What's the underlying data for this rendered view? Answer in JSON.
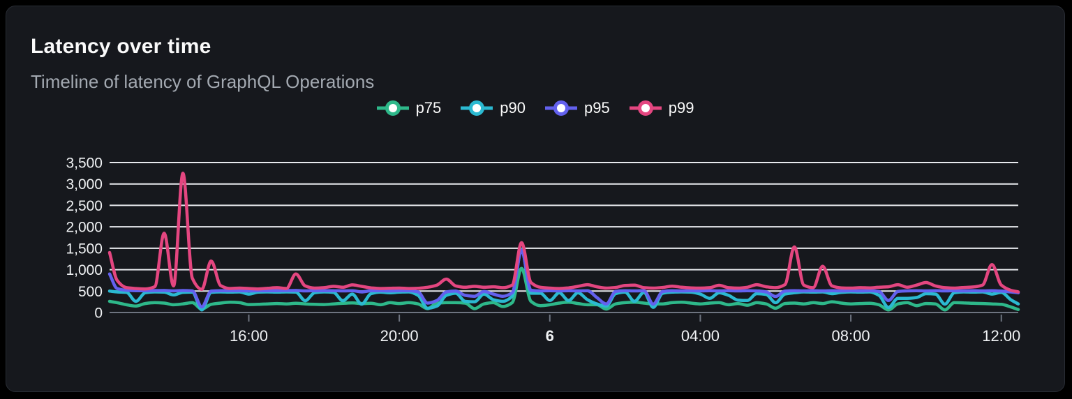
{
  "panel": {
    "title": "Latency over time",
    "subtitle": "Timeline of latency of GraphQL Operations"
  },
  "colors": {
    "background": "#000000",
    "card_background": "#16181d",
    "card_border": "#282c34",
    "title_text": "#fafafa",
    "subtitle_text": "#a3a9b1",
    "axis_label_text": "#f0f2f4",
    "gridline": "#e8eaee",
    "axis_line": "#6e7480",
    "p75": "#2eb88a",
    "p90": "#2bb9d1",
    "p95": "#6361ee",
    "p99": "#e44680"
  },
  "chart_data": {
    "type": "line",
    "title": "Latency over time",
    "subtitle": "Timeline of latency of GraphQL Operations",
    "xlabel": "",
    "ylabel": "",
    "grid": "horizontal",
    "legend_position": "top-center",
    "ylim": [
      0,
      3500
    ],
    "xlim": [
      12.3,
      36.45
    ],
    "x_unit": "hours-of-day (continuous, 24 = midnight of day 6)",
    "y_ticks": [
      {
        "value": 0,
        "label": "0"
      },
      {
        "value": 500,
        "label": "500"
      },
      {
        "value": 1000,
        "label": "1,000"
      },
      {
        "value": 1500,
        "label": "1,500"
      },
      {
        "value": 2000,
        "label": "2,000"
      },
      {
        "value": 2500,
        "label": "2,500"
      },
      {
        "value": 3000,
        "label": "3,000"
      },
      {
        "value": 3500,
        "label": "3,500"
      }
    ],
    "x_ticks": [
      {
        "value": 16,
        "label": "16:00",
        "emphasis": false
      },
      {
        "value": 20,
        "label": "20:00",
        "emphasis": false
      },
      {
        "value": 24,
        "label": "6",
        "emphasis": true
      },
      {
        "value": 28,
        "label": "04:00",
        "emphasis": false
      },
      {
        "value": 32,
        "label": "08:00",
        "emphasis": false
      },
      {
        "value": 36,
        "label": "12:00",
        "emphasis": false
      }
    ],
    "x": [
      12.3,
      12.5,
      12.75,
      13,
      13.25,
      13.5,
      13.75,
      14,
      14.25,
      14.5,
      14.75,
      15,
      15.25,
      15.5,
      15.75,
      16,
      16.25,
      16.5,
      16.75,
      17,
      17.25,
      17.5,
      17.75,
      18,
      18.25,
      18.5,
      18.75,
      19,
      19.25,
      19.5,
      19.75,
      20,
      20.25,
      20.5,
      20.75,
      21,
      21.25,
      21.5,
      21.75,
      22,
      22.25,
      22.5,
      22.75,
      23,
      23.25,
      23.5,
      23.75,
      24,
      24.25,
      24.5,
      24.75,
      25,
      25.25,
      25.5,
      25.75,
      26,
      26.25,
      26.5,
      26.75,
      27,
      27.25,
      27.5,
      27.75,
      28,
      28.25,
      28.5,
      28.75,
      29,
      29.25,
      29.5,
      29.75,
      30,
      30.25,
      30.5,
      30.75,
      31,
      31.25,
      31.5,
      31.75,
      32,
      32.25,
      32.5,
      32.75,
      33,
      33.25,
      33.5,
      33.75,
      34,
      34.25,
      34.5,
      34.75,
      35,
      35.25,
      35.5,
      35.75,
      36,
      36.25,
      36.45
    ],
    "series": [
      {
        "name": "p75",
        "color": "#2eb88a",
        "values": [
          260,
          230,
          180,
          150,
          210,
          230,
          220,
          180,
          200,
          230,
          80,
          190,
          220,
          240,
          230,
          185,
          190,
          200,
          210,
          200,
          215,
          200,
          190,
          185,
          200,
          215,
          225,
          210,
          215,
          180,
          230,
          210,
          230,
          200,
          90,
          220,
          230,
          230,
          220,
          90,
          200,
          230,
          140,
          230,
          1030,
          260,
          160,
          180,
          220,
          240,
          210,
          180,
          180,
          80,
          200,
          230,
          240,
          220,
          200,
          200,
          230,
          240,
          220,
          200,
          220,
          230,
          180,
          210,
          170,
          230,
          200,
          100,
          210,
          220,
          200,
          230,
          210,
          250,
          220,
          200,
          210,
          215,
          180,
          60,
          200,
          230,
          160,
          210,
          200,
          60,
          230,
          225,
          215,
          210,
          200,
          190,
          130,
          70
        ]
      },
      {
        "name": "p90",
        "color": "#2bb9d1",
        "values": [
          500,
          480,
          470,
          260,
          460,
          480,
          475,
          410,
          470,
          475,
          60,
          470,
          480,
          475,
          480,
          430,
          475,
          480,
          475,
          480,
          475,
          275,
          460,
          480,
          470,
          275,
          430,
          195,
          440,
          475,
          460,
          475,
          480,
          400,
          100,
          150,
          400,
          450,
          260,
          250,
          430,
          300,
          260,
          380,
          1480,
          450,
          450,
          280,
          460,
          280,
          460,
          300,
          200,
          150,
          440,
          475,
          260,
          470,
          120,
          450,
          475,
          480,
          475,
          430,
          330,
          460,
          400,
          290,
          280,
          440,
          420,
          230,
          430,
          460,
          480,
          475,
          480,
          440,
          470,
          480,
          475,
          480,
          400,
          115,
          330,
          330,
          350,
          440,
          430,
          195,
          460,
          480,
          475,
          480,
          430,
          470,
          300,
          200
        ]
      },
      {
        "name": "p95",
        "color": "#6361ee",
        "values": [
          900,
          560,
          520,
          510,
          508,
          512,
          515,
          505,
          512,
          505,
          130,
          500,
          510,
          508,
          510,
          505,
          510,
          508,
          510,
          512,
          515,
          505,
          508,
          510,
          508,
          505,
          510,
          480,
          508,
          510,
          505,
          508,
          510,
          480,
          220,
          280,
          480,
          500,
          400,
          380,
          490,
          430,
          380,
          460,
          1450,
          520,
          505,
          510,
          505,
          510,
          505,
          510,
          350,
          200,
          490,
          510,
          505,
          510,
          195,
          490,
          510,
          505,
          510,
          505,
          510,
          505,
          510,
          505,
          510,
          505,
          480,
          375,
          500,
          510,
          505,
          510,
          505,
          510,
          505,
          510,
          505,
          510,
          490,
          280,
          490,
          505,
          510,
          505,
          510,
          505,
          510,
          505,
          510,
          505,
          510,
          500,
          480,
          460
        ]
      },
      {
        "name": "p99",
        "color": "#e44680",
        "values": [
          1400,
          750,
          580,
          560,
          550,
          600,
          1850,
          620,
          3250,
          800,
          540,
          1200,
          630,
          560,
          570,
          560,
          550,
          565,
          580,
          560,
          900,
          620,
          570,
          580,
          610,
          590,
          645,
          610,
          575,
          560,
          565,
          570,
          560,
          565,
          590,
          640,
          780,
          620,
          590,
          610,
          590,
          600,
          580,
          640,
          1630,
          700,
          590,
          570,
          560,
          575,
          610,
          650,
          600,
          570,
          585,
          630,
          640,
          580,
          570,
          585,
          615,
          590,
          575,
          570,
          580,
          635,
          580,
          570,
          590,
          650,
          600,
          580,
          650,
          1530,
          640,
          580,
          1080,
          620,
          575,
          570,
          580,
          575,
          590,
          600,
          650,
          590,
          640,
          700,
          620,
          580,
          570,
          585,
          595,
          640,
          1120,
          640,
          520,
          480
        ]
      }
    ]
  }
}
